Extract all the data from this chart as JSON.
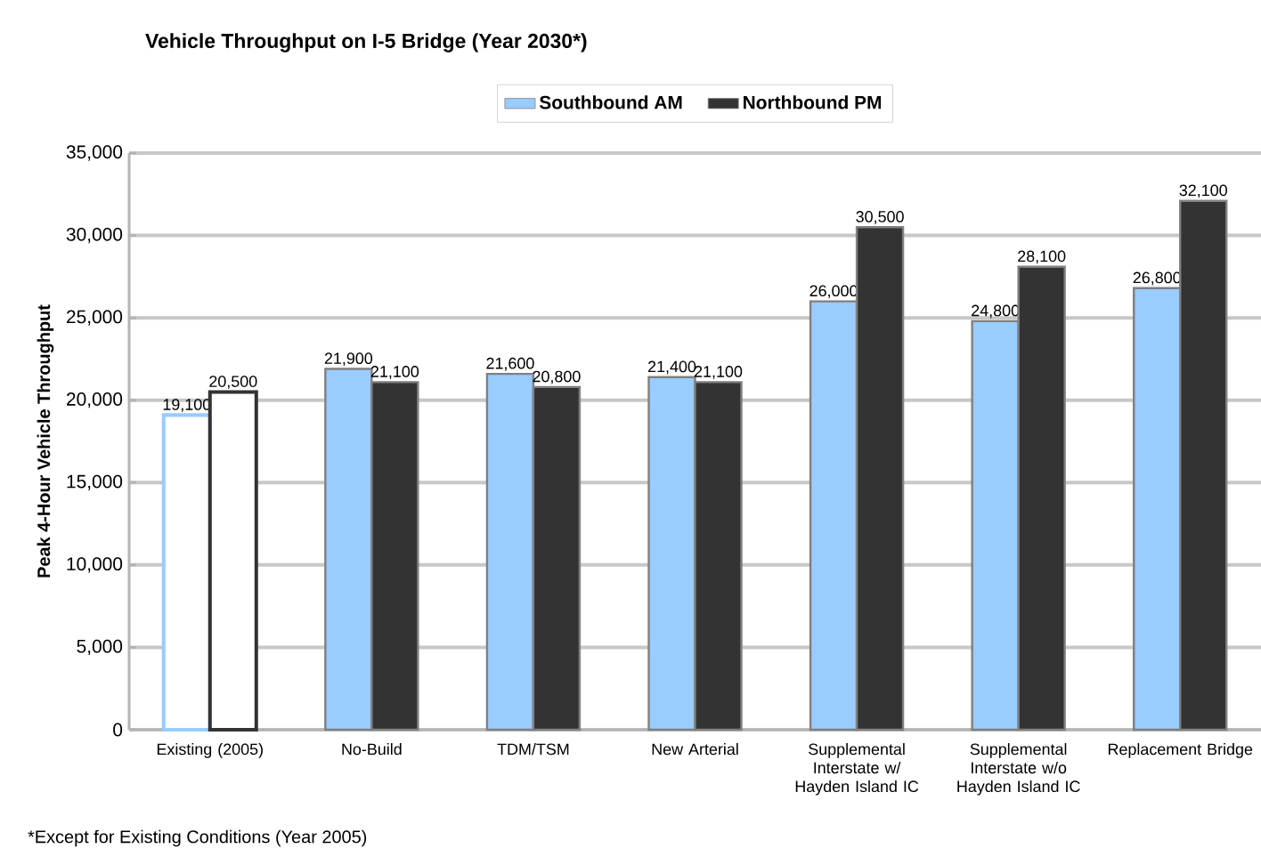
{
  "chart_data": {
    "type": "bar",
    "title": "Vehicle Throughput on I-5 Bridge (Year 2030*)",
    "ylabel": "Peak 4-Hour Vehicle Throughput",
    "categories": [
      "Existing (2005)",
      "No-Build",
      "TDM/TSM",
      "New Arterial",
      "Supplemental Interstate w/ Hayden Island IC",
      "Supplemental Interstate w/o Hayden Island IC",
      "Replacement Bridge"
    ],
    "series": [
      {
        "name": "Southbound AM",
        "color": "#99ccff",
        "colors": [
          "#ffffff",
          "#99ccff",
          "#99ccff",
          "#99ccff",
          "#99ccff",
          "#99ccff",
          "#99ccff"
        ],
        "values": [
          19100,
          21900,
          21600,
          21400,
          26000,
          24800,
          26800
        ],
        "value_labels": [
          "19,100",
          "21,900",
          "21,600",
          "21,400",
          "26,000",
          "24,800",
          "26,800"
        ]
      },
      {
        "name": "Northbound PM",
        "color": "#333333",
        "colors": [
          "#ffffff",
          "#333333",
          "#333333",
          "#333333",
          "#333333",
          "#333333",
          "#333333"
        ],
        "values": [
          20500,
          21100,
          20800,
          21100,
          30500,
          28100,
          32100
        ],
        "value_labels": [
          "20,500",
          "21,100",
          "20,800",
          "21,100",
          "30,500",
          "28,100",
          "32,100"
        ]
      }
    ],
    "ylim": [
      0,
      35000
    ],
    "yticks": [
      {
        "value": 0,
        "label": "0"
      },
      {
        "value": 5000,
        "label": "5,000"
      },
      {
        "value": 10000,
        "label": "10,000"
      },
      {
        "value": 15000,
        "label": "15,000"
      },
      {
        "value": 20000,
        "label": "20,000"
      },
      {
        "value": 25000,
        "label": "25,000"
      },
      {
        "value": 30000,
        "label": "30,000"
      },
      {
        "value": 35000,
        "label": "35,000"
      }
    ],
    "grid": "y",
    "legend": "top",
    "annotations": [
      "*Except for Existing Conditions (Year 2005)"
    ]
  }
}
